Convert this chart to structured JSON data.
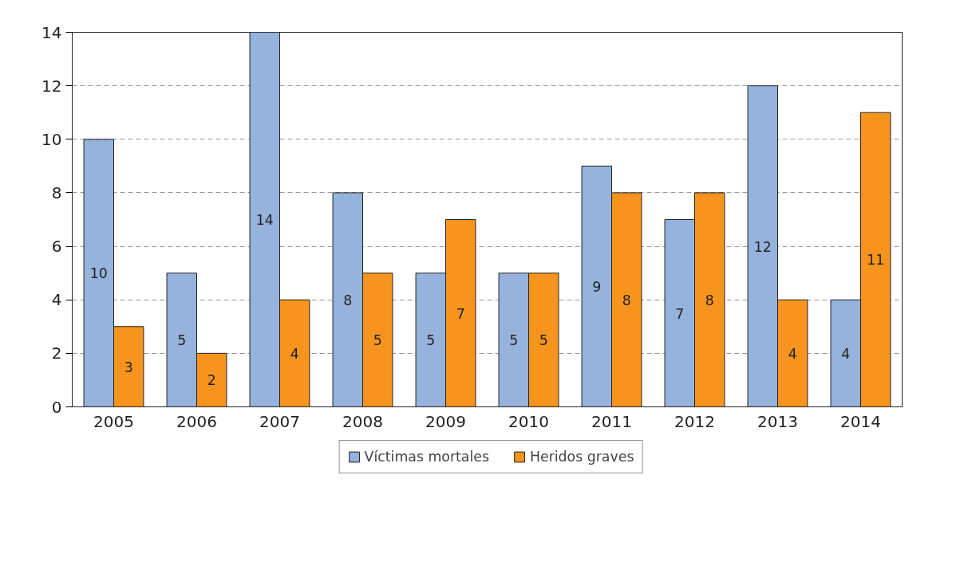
{
  "chart_data": {
    "type": "bar",
    "categories": [
      "2005",
      "2006",
      "2007",
      "2008",
      "2009",
      "2010",
      "2011",
      "2012",
      "2013",
      "2014"
    ],
    "series": [
      {
        "name": "Víctimas mortales",
        "color": "#95b3dc",
        "values": [
          10,
          5,
          14,
          8,
          5,
          5,
          9,
          7,
          12,
          4
        ]
      },
      {
        "name": "Heridos graves",
        "color": "#f7941d",
        "values": [
          3,
          2,
          4,
          5,
          7,
          5,
          8,
          8,
          4,
          11
        ]
      }
    ],
    "ylim": [
      0,
      14
    ],
    "yticks": [
      0,
      2,
      4,
      6,
      8,
      10,
      12,
      14
    ],
    "grid": "y",
    "legend": "bottom",
    "data_labels": true
  }
}
